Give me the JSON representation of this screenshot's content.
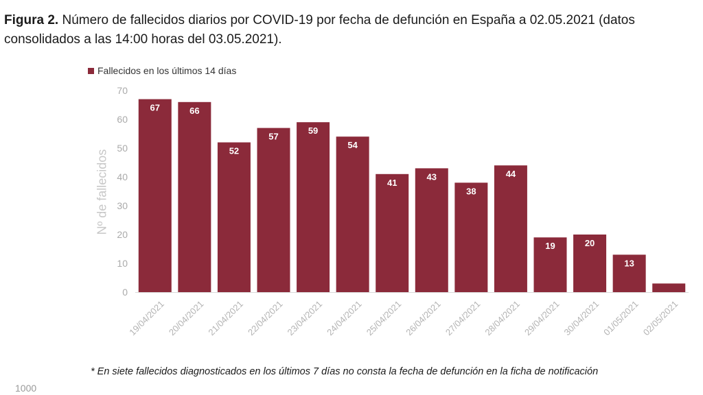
{
  "caption": {
    "bold": "Figura 2.",
    "text": " Número de fallecidos diarios por COVID-19 por fecha de defunción en España a 02.05.2021 (datos consolidados a las 14:00 horas del 03.05.2021)."
  },
  "footnote": "* En siete  fallecidos diagnosticados en los últimos 7 días no consta la fecha de defunción en la ficha de notificación",
  "stray_text": "1000",
  "chart_data": {
    "type": "bar",
    "legend": "Fallecidos en los últimos 14 días",
    "legend_position": "top-left",
    "ylabel": "Nº de fallecidos",
    "xlabel": "",
    "ylim": [
      0,
      70
    ],
    "yticks": [
      "0",
      "10",
      "20",
      "30",
      "40",
      "50",
      "60",
      "70"
    ],
    "grid": false,
    "color": "#8b2a3a",
    "categories": [
      "19/04/2021",
      "20/04/2021",
      "21/04/2021",
      "22/04/2021",
      "23/04/2021",
      "24/04/2021",
      "25/04/2021",
      "26/04/2021",
      "27/04/2021",
      "28/04/2021",
      "29/04/2021",
      "30/04/2021",
      "01/05/2021",
      "02/05/2021"
    ],
    "values": [
      67,
      66,
      52,
      57,
      59,
      54,
      41,
      43,
      38,
      44,
      19,
      20,
      13,
      3
    ],
    "data_labels": [
      "67",
      "66",
      "52",
      "57",
      "59",
      "54",
      "41",
      "43",
      "38",
      "44",
      "19",
      "20",
      "13",
      ""
    ]
  }
}
